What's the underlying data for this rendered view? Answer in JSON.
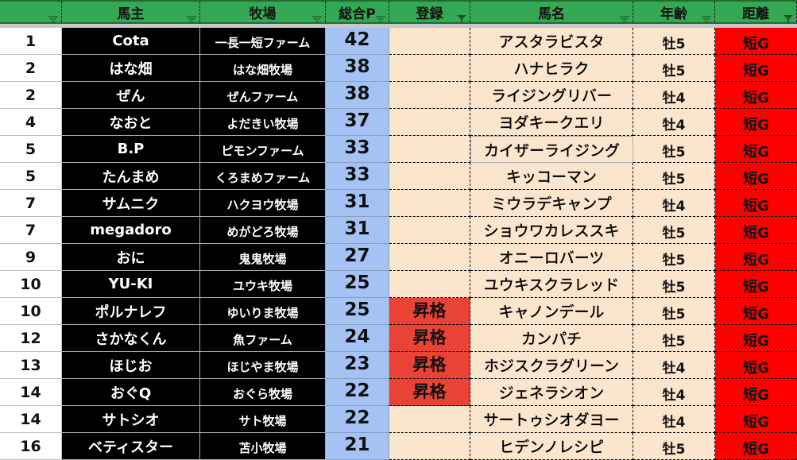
{
  "header": {
    "columns": [
      {
        "label": "",
        "filter": "inactive"
      },
      {
        "label": "馬主",
        "filter": "inactive"
      },
      {
        "label": "牧場",
        "filter": "inactive"
      },
      {
        "label": "総合P",
        "filter": "inactive"
      },
      {
        "label": "登録",
        "filter": "active"
      },
      {
        "label": "馬名",
        "filter": "inactive"
      },
      {
        "label": "年齢",
        "filter": "inactive"
      },
      {
        "label": "距離",
        "filter": "active"
      }
    ]
  },
  "colors": {
    "header": "#34a853",
    "owner_bg": "#000000",
    "points_bg": "#a4c2f4",
    "peach": "#fce5cd",
    "promotion": "#ea4335",
    "distance": "#ff0000"
  },
  "rows": [
    {
      "rank": "1",
      "owner": "Cota",
      "farm": "一長一短ファーム",
      "points": "42",
      "registration": "",
      "horse": "アスタラビスタ",
      "age": "牡5",
      "distance": "短G"
    },
    {
      "rank": "2",
      "owner": "はな畑",
      "farm": "はな畑牧場",
      "points": "38",
      "registration": "",
      "horse": "ハナヒラク",
      "age": "牡5",
      "distance": "短G"
    },
    {
      "rank": "2",
      "owner": "ぜん",
      "farm": "ぜんファーム",
      "points": "38",
      "registration": "",
      "horse": "ライジングリバー",
      "age": "牡4",
      "distance": "短G"
    },
    {
      "rank": "4",
      "owner": "なおと",
      "farm": "よだきい牧場",
      "points": "37",
      "registration": "",
      "horse": "ヨダキークエリ",
      "age": "牡4",
      "distance": "短G"
    },
    {
      "rank": "5",
      "owner": "B.P",
      "farm": "ピモンファーム",
      "points": "33",
      "registration": "",
      "horse": "カイザーライジング",
      "age": "牡5",
      "distance": "短G",
      "selected": true
    },
    {
      "rank": "5",
      "owner": "たんまめ",
      "farm": "くろまめファーム",
      "points": "33",
      "registration": "",
      "horse": "キッコーマン",
      "age": "牡5",
      "distance": "短G"
    },
    {
      "rank": "7",
      "owner": "サムニク",
      "farm": "ハクヨウ牧場",
      "points": "31",
      "registration": "",
      "horse": "ミウラデキャンプ",
      "age": "牡4",
      "distance": "短G"
    },
    {
      "rank": "7",
      "owner": "megadoro",
      "farm": "めがどろ牧場",
      "points": "31",
      "registration": "",
      "horse": "ショウワカレススキ",
      "age": "牡5",
      "distance": "短G"
    },
    {
      "rank": "9",
      "owner": "おに",
      "farm": "鬼鬼牧場",
      "points": "27",
      "registration": "",
      "horse": "オニーロバーツ",
      "age": "牡5",
      "distance": "短G"
    },
    {
      "rank": "10",
      "owner": "YU-KI",
      "farm": "ユウキ牧場",
      "points": "25",
      "registration": "",
      "horse": "ユウキスクラレッド",
      "age": "牡5",
      "distance": "短G"
    },
    {
      "rank": "10",
      "owner": "ポルナレフ",
      "farm": "ゆいりま牧場",
      "points": "25",
      "registration": "昇格",
      "horse": "キャノンデール",
      "age": "牡5",
      "distance": "短G"
    },
    {
      "rank": "12",
      "owner": "さかなくん",
      "farm": "魚ファーム",
      "points": "24",
      "registration": "昇格",
      "horse": "カンパチ",
      "age": "牡5",
      "distance": "短G"
    },
    {
      "rank": "13",
      "owner": "ほじお",
      "farm": "ほじやま牧場",
      "points": "23",
      "registration": "昇格",
      "horse": "ホジスクラグリーン",
      "age": "牡4",
      "distance": "短G"
    },
    {
      "rank": "14",
      "owner": "おぐQ",
      "farm": "おぐら牧場",
      "points": "22",
      "registration": "昇格",
      "horse": "ジェネラシオン",
      "age": "牡4",
      "distance": "短G"
    },
    {
      "rank": "14",
      "owner": "サトシオ",
      "farm": "サト牧場",
      "points": "22",
      "registration": "",
      "horse": "サートゥシオダヨー",
      "age": "牡4",
      "distance": "短G"
    },
    {
      "rank": "16",
      "owner": "ベティスター",
      "farm": "苫小牧場",
      "points": "21",
      "registration": "",
      "horse": "ヒデンノレシピ",
      "age": "牡5",
      "distance": "短G"
    }
  ]
}
